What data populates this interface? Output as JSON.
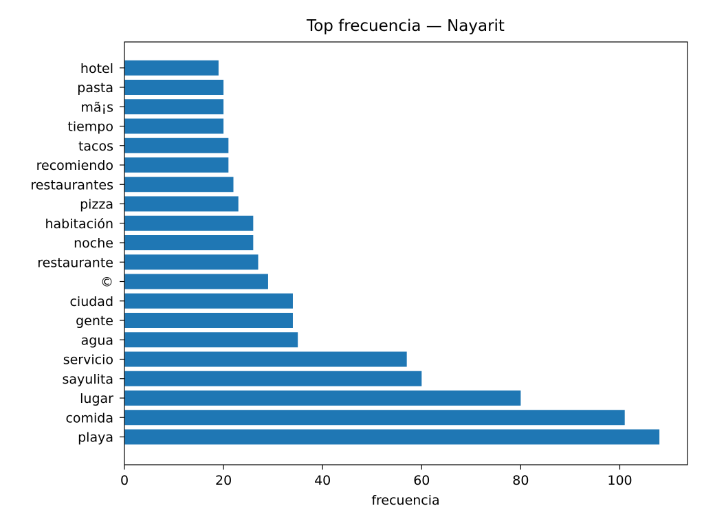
{
  "chart_data": {
    "type": "bar",
    "orientation": "horizontal",
    "title": "Top frecuencia — Nayarit",
    "xlabel": "frecuencia",
    "ylabel": "",
    "xlim": [
      0,
      113
    ],
    "x_ticks": [
      0,
      20,
      40,
      60,
      80,
      100
    ],
    "grid": false,
    "bar_color": "#1f77b4",
    "categories": [
      "playa",
      "comida",
      "lugar",
      "sayulita",
      "servicio",
      "agua",
      "gente",
      "ciudad",
      "©",
      "restaurante",
      "noche",
      "habitación",
      "pizza",
      "restaurantes",
      "recomiendo",
      "tacos",
      "tiempo",
      "mã¡s",
      "pasta",
      "hotel"
    ],
    "values": [
      108,
      101,
      80,
      60,
      57,
      35,
      34,
      34,
      29,
      27,
      26,
      26,
      23,
      22,
      21,
      21,
      20,
      20,
      20,
      19
    ]
  }
}
